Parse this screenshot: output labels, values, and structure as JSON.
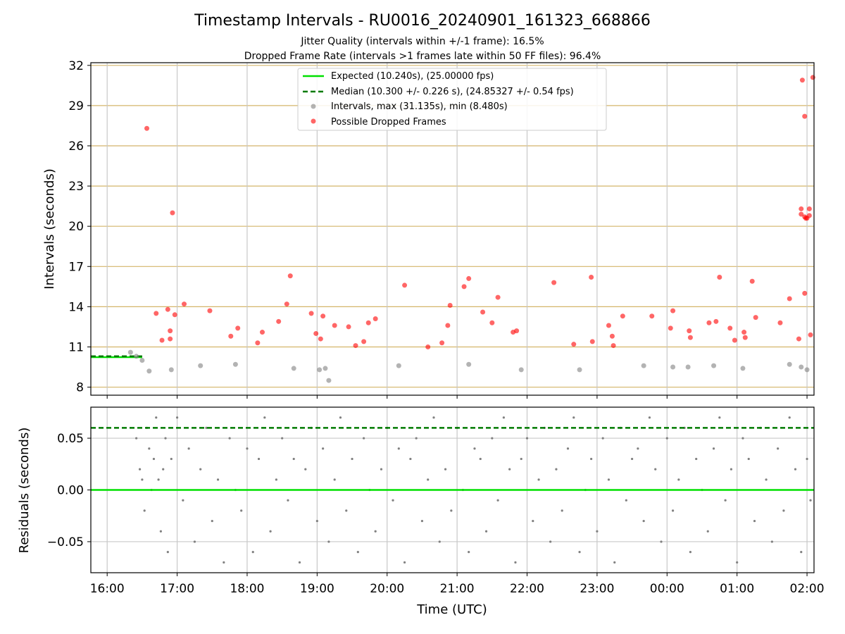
{
  "figure": {
    "title": "Timestamp Intervals - RU0016_20240901_161323_668866",
    "subtitle_1": "Jitter Quality (intervals within +/-1 frame): 16.5%",
    "subtitle_2": "Dropped Frame Rate (intervals >1 frames late within 50 FF files): 96.4%"
  },
  "colors": {
    "expected": "#00e000",
    "median": "#007a00",
    "intervals": "#808080",
    "dropped": "#ff0000",
    "hgrid_top": "#d4b56a",
    "grid": "#c8c8c8"
  },
  "chart_data": [
    {
      "type": "scatter",
      "title": "",
      "xlabel": "",
      "ylabel": "Intervals (seconds)",
      "xlim": [
        "15:46",
        "02:06"
      ],
      "ylim": [
        7.4,
        32.2
      ],
      "yticks": [
        "8",
        "11",
        "14",
        "17",
        "20",
        "23",
        "26",
        "29",
        "32"
      ],
      "grid": true,
      "legend_position": "top-center",
      "legend": [
        "Expected (10.240s), (25.00000 fps)",
        "Median (10.300 +/- 0.226 s), (24.85327 +/- 0.54 fps)",
        "Intervals, max (31.135s), min (8.480s)",
        "Possible Dropped Frames"
      ],
      "expected_interval": 10.24,
      "median_interval": 10.3,
      "median_line_x": [
        "15:46",
        "16:30"
      ],
      "series": [
        {
          "name": "Intervals, max (31.135s), min (8.480s)",
          "points": [
            [
              "16:20",
              10.6
            ],
            [
              "16:36",
              9.2
            ],
            [
              "16:55",
              9.3
            ],
            [
              "17:20",
              9.6
            ],
            [
              "17:50",
              9.7
            ],
            [
              "18:40",
              9.4
            ],
            [
              "19:02",
              9.3
            ],
            [
              "19:07",
              9.4
            ],
            [
              "19:10",
              8.5
            ],
            [
              "20:10",
              9.6
            ],
            [
              "21:10",
              9.7
            ],
            [
              "21:55",
              9.3
            ],
            [
              "22:45",
              9.3
            ],
            [
              "23:40",
              9.6
            ],
            [
              "00:05",
              9.5
            ],
            [
              "00:18",
              9.5
            ],
            [
              "00:40",
              9.6
            ],
            [
              "01:05",
              9.4
            ],
            [
              "01:45",
              9.7
            ],
            [
              "01:55",
              9.5
            ],
            [
              "02:00",
              9.3
            ],
            [
              "16:25",
              10.3
            ],
            [
              "16:30",
              10.0
            ]
          ]
        },
        {
          "name": "Possible Dropped Frames",
          "points": [
            [
              "16:34",
              27.3
            ],
            [
              "16:42",
              13.5
            ],
            [
              "16:47",
              11.5
            ],
            [
              "16:52",
              13.8
            ],
            [
              "16:54",
              12.2
            ],
            [
              "16:54",
              11.6
            ],
            [
              "16:56",
              21.0
            ],
            [
              "16:58",
              13.4
            ],
            [
              "17:06",
              14.2
            ],
            [
              "17:28",
              13.7
            ],
            [
              "17:46",
              11.8
            ],
            [
              "17:52",
              12.4
            ],
            [
              "18:09",
              11.3
            ],
            [
              "18:13",
              12.1
            ],
            [
              "18:27",
              12.9
            ],
            [
              "18:34",
              14.2
            ],
            [
              "18:37",
              16.3
            ],
            [
              "18:55",
              13.5
            ],
            [
              "18:59",
              12.0
            ],
            [
              "19:03",
              11.6
            ],
            [
              "19:05",
              13.3
            ],
            [
              "19:15",
              12.6
            ],
            [
              "19:27",
              12.5
            ],
            [
              "19:33",
              11.1
            ],
            [
              "19:40",
              11.4
            ],
            [
              "19:44",
              12.8
            ],
            [
              "19:50",
              13.1
            ],
            [
              "20:15",
              15.6
            ],
            [
              "20:35",
              11.0
            ],
            [
              "20:47",
              11.3
            ],
            [
              "20:52",
              12.6
            ],
            [
              "20:54",
              14.1
            ],
            [
              "21:06",
              15.5
            ],
            [
              "21:10",
              16.1
            ],
            [
              "21:22",
              13.6
            ],
            [
              "21:30",
              12.8
            ],
            [
              "21:35",
              14.7
            ],
            [
              "21:48",
              12.1
            ],
            [
              "21:51",
              12.2
            ],
            [
              "22:23",
              15.8
            ],
            [
              "22:40",
              11.2
            ],
            [
              "22:55",
              16.2
            ],
            [
              "22:56",
              11.4
            ],
            [
              "23:10",
              12.6
            ],
            [
              "23:13",
              11.8
            ],
            [
              "23:14",
              11.1
            ],
            [
              "23:22",
              13.3
            ],
            [
              "23:47",
              13.3
            ],
            [
              "00:03",
              12.4
            ],
            [
              "00:05",
              13.7
            ],
            [
              "00:19",
              12.2
            ],
            [
              "00:20",
              11.7
            ],
            [
              "00:36",
              12.8
            ],
            [
              "00:42",
              12.9
            ],
            [
              "00:45",
              16.2
            ],
            [
              "00:54",
              12.4
            ],
            [
              "00:58",
              11.5
            ],
            [
              "01:06",
              12.1
            ],
            [
              "01:07",
              11.7
            ],
            [
              "01:13",
              15.9
            ],
            [
              "01:16",
              13.2
            ],
            [
              "01:37",
              12.8
            ],
            [
              "01:45",
              14.6
            ],
            [
              "01:53",
              11.6
            ],
            [
              "01:55",
              20.9
            ],
            [
              "01:55",
              21.3
            ],
            [
              "01:56",
              30.9
            ],
            [
              "01:58",
              28.2
            ],
            [
              "01:58",
              15.0
            ],
            [
              "01:58",
              20.7
            ],
            [
              "01:59",
              20.6
            ],
            [
              "02:00",
              20.6
            ],
            [
              "02:02",
              21.3
            ],
            [
              "02:02",
              20.8
            ],
            [
              "02:03",
              11.9
            ],
            [
              "02:05",
              31.1
            ]
          ]
        }
      ]
    },
    {
      "type": "scatter",
      "title": "",
      "xlabel": "Time (UTC)",
      "ylabel": "Residuals (seconds)",
      "xlim": [
        "15:46",
        "02:06"
      ],
      "ylim": [
        -0.08,
        0.08
      ],
      "yticks": [
        "−0.05",
        "0.00",
        "0.05"
      ],
      "xticks": [
        "16:00",
        "17:00",
        "18:00",
        "19:00",
        "20:00",
        "21:00",
        "22:00",
        "23:00",
        "00:00",
        "01:00",
        "02:00"
      ],
      "grid": true,
      "expected_residual": 0.0,
      "median_residual": 0.06,
      "series": [
        {
          "name": "",
          "points": [
            [
              "16:25",
              0.05
            ],
            [
              "16:28",
              0.02
            ],
            [
              "16:30",
              0.01
            ],
            [
              "16:32",
              -0.02
            ],
            [
              "16:34",
              0.06
            ],
            [
              "16:36",
              0.04
            ],
            [
              "16:38",
              0.0
            ],
            [
              "16:40",
              0.03
            ],
            [
              "16:42",
              0.07
            ],
            [
              "16:44",
              0.01
            ],
            [
              "16:46",
              -0.04
            ],
            [
              "16:48",
              0.02
            ],
            [
              "16:50",
              0.05
            ],
            [
              "16:52",
              -0.06
            ],
            [
              "16:55",
              0.03
            ],
            [
              "17:00",
              0.07
            ],
            [
              "17:05",
              -0.01
            ],
            [
              "17:10",
              0.04
            ],
            [
              "17:15",
              -0.05
            ],
            [
              "17:20",
              0.02
            ],
            [
              "17:25",
              0.06
            ],
            [
              "17:30",
              -0.03
            ],
            [
              "17:35",
              0.01
            ],
            [
              "17:40",
              -0.07
            ],
            [
              "17:45",
              0.05
            ],
            [
              "17:50",
              0.0
            ],
            [
              "17:55",
              -0.02
            ],
            [
              "18:00",
              0.04
            ],
            [
              "18:05",
              -0.06
            ],
            [
              "18:10",
              0.03
            ],
            [
              "18:15",
              0.07
            ],
            [
              "18:20",
              -0.04
            ],
            [
              "18:25",
              0.01
            ],
            [
              "18:30",
              0.05
            ],
            [
              "18:35",
              -0.01
            ],
            [
              "18:40",
              0.03
            ],
            [
              "18:45",
              -0.07
            ],
            [
              "18:50",
              0.02
            ],
            [
              "18:55",
              0.06
            ],
            [
              "19:00",
              -0.03
            ],
            [
              "19:05",
              0.04
            ],
            [
              "19:10",
              -0.05
            ],
            [
              "19:15",
              0.01
            ],
            [
              "19:20",
              0.07
            ],
            [
              "19:25",
              -0.02
            ],
            [
              "19:30",
              0.03
            ],
            [
              "19:35",
              -0.06
            ],
            [
              "19:40",
              0.05
            ],
            [
              "19:45",
              0.0
            ],
            [
              "19:50",
              -0.04
            ],
            [
              "19:55",
              0.02
            ],
            [
              "20:00",
              0.06
            ],
            [
              "20:05",
              -0.01
            ],
            [
              "20:10",
              0.04
            ],
            [
              "20:15",
              -0.07
            ],
            [
              "20:20",
              0.03
            ],
            [
              "20:25",
              0.05
            ],
            [
              "20:30",
              -0.03
            ],
            [
              "20:35",
              0.01
            ],
            [
              "20:40",
              0.07
            ],
            [
              "20:45",
              -0.05
            ],
            [
              "20:50",
              0.02
            ],
            [
              "20:55",
              -0.02
            ],
            [
              "21:00",
              0.06
            ],
            [
              "21:05",
              0.0
            ],
            [
              "21:10",
              -0.06
            ],
            [
              "21:15",
              0.04
            ],
            [
              "21:20",
              0.03
            ],
            [
              "21:25",
              -0.04
            ],
            [
              "21:30",
              0.05
            ],
            [
              "21:35",
              -0.01
            ],
            [
              "21:40",
              0.07
            ],
            [
              "21:45",
              0.02
            ],
            [
              "21:50",
              -0.07
            ],
            [
              "21:55",
              0.03
            ],
            [
              "22:00",
              0.05
            ],
            [
              "22:05",
              -0.03
            ],
            [
              "22:10",
              0.01
            ],
            [
              "22:15",
              0.06
            ],
            [
              "22:20",
              -0.05
            ],
            [
              "22:25",
              0.02
            ],
            [
              "22:30",
              -0.02
            ],
            [
              "22:35",
              0.04
            ],
            [
              "22:40",
              0.07
            ],
            [
              "22:45",
              -0.06
            ],
            [
              "22:50",
              0.0
            ],
            [
              "22:55",
              0.03
            ],
            [
              "23:00",
              -0.04
            ],
            [
              "23:05",
              0.05
            ],
            [
              "23:10",
              0.01
            ],
            [
              "23:15",
              -0.07
            ],
            [
              "23:20",
              0.06
            ],
            [
              "23:25",
              -0.01
            ],
            [
              "23:30",
              0.03
            ],
            [
              "23:35",
              0.04
            ],
            [
              "23:40",
              -0.03
            ],
            [
              "23:45",
              0.07
            ],
            [
              "23:50",
              0.02
            ],
            [
              "23:55",
              -0.05
            ],
            [
              "00:00",
              0.05
            ],
            [
              "00:05",
              -0.02
            ],
            [
              "00:10",
              0.01
            ],
            [
              "00:15",
              0.06
            ],
            [
              "00:20",
              -0.06
            ],
            [
              "00:25",
              0.03
            ],
            [
              "00:30",
              0.0
            ],
            [
              "00:35",
              -0.04
            ],
            [
              "00:40",
              0.04
            ],
            [
              "00:45",
              0.07
            ],
            [
              "00:50",
              -0.01
            ],
            [
              "00:55",
              0.02
            ],
            [
              "01:00",
              -0.07
            ],
            [
              "01:05",
              0.05
            ],
            [
              "01:10",
              0.03
            ],
            [
              "01:15",
              -0.03
            ],
            [
              "01:20",
              0.06
            ],
            [
              "01:25",
              0.01
            ],
            [
              "01:30",
              -0.05
            ],
            [
              "01:35",
              0.04
            ],
            [
              "01:40",
              -0.02
            ],
            [
              "01:45",
              0.07
            ],
            [
              "01:50",
              0.02
            ],
            [
              "01:55",
              -0.06
            ],
            [
              "02:00",
              0.03
            ],
            [
              "02:03",
              -0.01
            ]
          ]
        }
      ]
    }
  ]
}
